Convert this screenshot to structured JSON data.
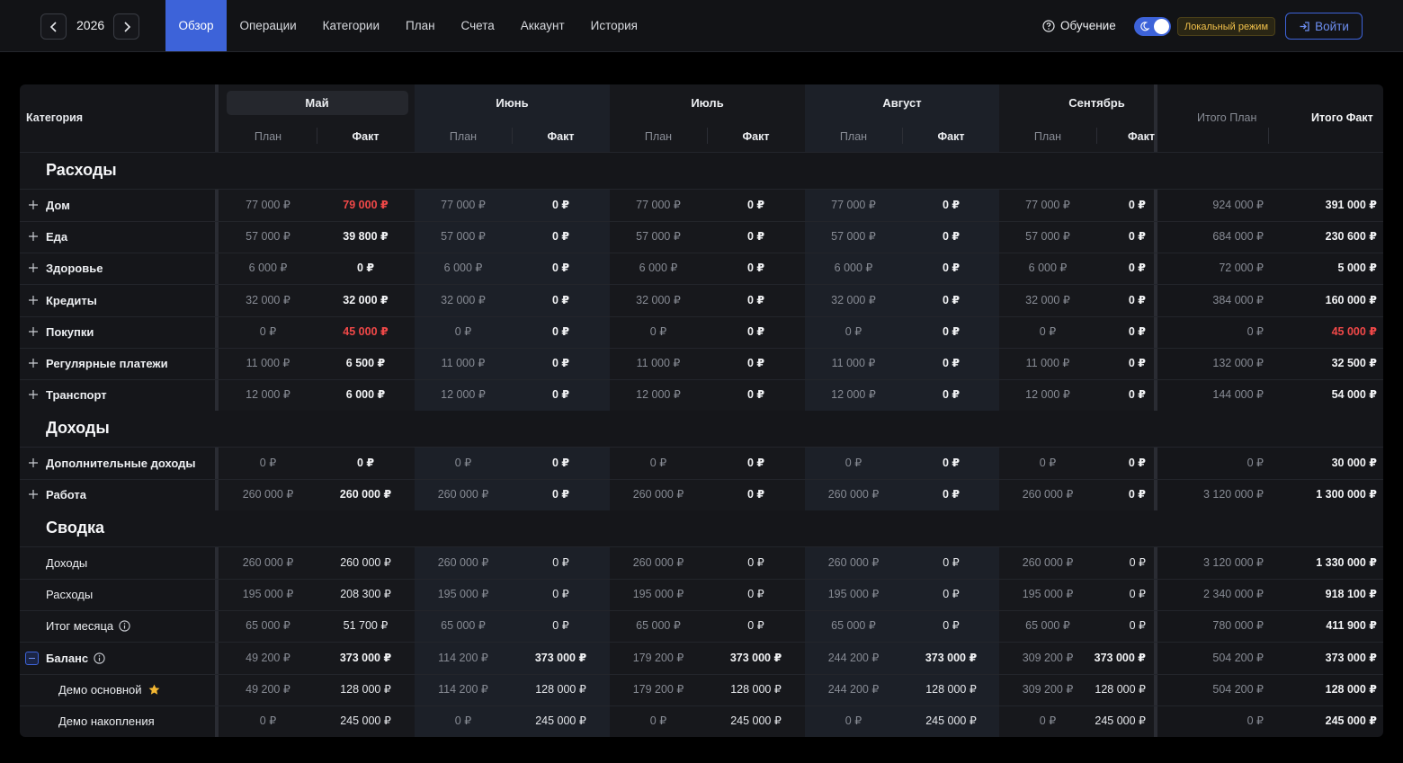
{
  "header": {
    "year": "2026",
    "tabs": [
      "Обзор",
      "Операции",
      "Категории",
      "План",
      "Счета",
      "Аккаунт",
      "История"
    ],
    "active_tab": "Обзор",
    "help_label": "Обучение",
    "local_mode_label": "Локальный режим",
    "login_label": "Войти",
    "accent_color": "#3d63d9",
    "badge_color": "#f2c14b"
  },
  "table": {
    "category_header": "Категория",
    "plan_label": "План",
    "fact_label": "Факт",
    "months": [
      "Май",
      "Июнь",
      "Июль",
      "Август",
      "Сентябрь"
    ],
    "total_plan_header": "Итого План",
    "total_fact_header": "Итого Факт",
    "sections": {
      "expenses": "Расходы",
      "income": "Доходы",
      "summary": "Сводка"
    },
    "expense_rows": [
      {
        "name": "Дом",
        "cells": [
          [
            "77 000 ₽",
            "79 000 ₽"
          ],
          [
            "77 000 ₽",
            "0 ₽"
          ],
          [
            "77 000 ₽",
            "0 ₽"
          ],
          [
            "77 000 ₽",
            "0 ₽"
          ],
          [
            "77 000 ₽",
            "0 ₽"
          ]
        ],
        "total_plan": "924 000 ₽",
        "total_fact": "391 000 ₽"
      },
      {
        "name": "Еда",
        "cells": [
          [
            "57 000 ₽",
            "39 800 ₽"
          ],
          [
            "57 000 ₽",
            "0 ₽"
          ],
          [
            "57 000 ₽",
            "0 ₽"
          ],
          [
            "57 000 ₽",
            "0 ₽"
          ],
          [
            "57 000 ₽",
            "0 ₽"
          ]
        ],
        "total_plan": "684 000 ₽",
        "total_fact": "230 600 ₽"
      },
      {
        "name": "Здоровье",
        "cells": [
          [
            "6 000 ₽",
            "0 ₽"
          ],
          [
            "6 000 ₽",
            "0 ₽"
          ],
          [
            "6 000 ₽",
            "0 ₽"
          ],
          [
            "6 000 ₽",
            "0 ₽"
          ],
          [
            "6 000 ₽",
            "0 ₽"
          ]
        ],
        "total_plan": "72 000 ₽",
        "total_fact": "5 000 ₽"
      },
      {
        "name": "Кредиты",
        "cells": [
          [
            "32 000 ₽",
            "32 000 ₽"
          ],
          [
            "32 000 ₽",
            "0 ₽"
          ],
          [
            "32 000 ₽",
            "0 ₽"
          ],
          [
            "32 000 ₽",
            "0 ₽"
          ],
          [
            "32 000 ₽",
            "0 ₽"
          ]
        ],
        "total_plan": "384 000 ₽",
        "total_fact": "160 000 ₽"
      },
      {
        "name": "Покупки",
        "cells": [
          [
            "0 ₽",
            "45 000 ₽"
          ],
          [
            "0 ₽",
            "0 ₽"
          ],
          [
            "0 ₽",
            "0 ₽"
          ],
          [
            "0 ₽",
            "0 ₽"
          ],
          [
            "0 ₽",
            "0 ₽"
          ]
        ],
        "total_plan": "0 ₽",
        "total_fact": "45 000 ₽"
      },
      {
        "name": "Регулярные платежи",
        "cells": [
          [
            "11 000 ₽",
            "6 500 ₽"
          ],
          [
            "11 000 ₽",
            "0 ₽"
          ],
          [
            "11 000 ₽",
            "0 ₽"
          ],
          [
            "11 000 ₽",
            "0 ₽"
          ],
          [
            "11 000 ₽",
            "0 ₽"
          ]
        ],
        "total_plan": "132 000 ₽",
        "total_fact": "32 500 ₽"
      },
      {
        "name": "Транспорт",
        "cells": [
          [
            "12 000 ₽",
            "6 000 ₽"
          ],
          [
            "12 000 ₽",
            "0 ₽"
          ],
          [
            "12 000 ₽",
            "0 ₽"
          ],
          [
            "12 000 ₽",
            "0 ₽"
          ],
          [
            "12 000 ₽",
            "0 ₽"
          ]
        ],
        "total_plan": "144 000 ₽",
        "total_fact": "54 000 ₽"
      }
    ],
    "income_rows": [
      {
        "name": "Дополнительные доходы",
        "cells": [
          [
            "0 ₽",
            "0 ₽"
          ],
          [
            "0 ₽",
            "0 ₽"
          ],
          [
            "0 ₽",
            "0 ₽"
          ],
          [
            "0 ₽",
            "0 ₽"
          ],
          [
            "0 ₽",
            "0 ₽"
          ]
        ],
        "total_plan": "0 ₽",
        "total_fact": "30 000 ₽"
      },
      {
        "name": "Работа",
        "cells": [
          [
            "260 000 ₽",
            "260 000 ₽"
          ],
          [
            "260 000 ₽",
            "0 ₽"
          ],
          [
            "260 000 ₽",
            "0 ₽"
          ],
          [
            "260 000 ₽",
            "0 ₽"
          ],
          [
            "260 000 ₽",
            "0 ₽"
          ]
        ],
        "total_plan": "3 120 000 ₽",
        "total_fact": "1 300 000 ₽"
      }
    ],
    "summary_rows": [
      {
        "name": "Доходы",
        "cells": [
          [
            "260 000 ₽",
            "260 000 ₽"
          ],
          [
            "260 000 ₽",
            "0 ₽"
          ],
          [
            "260 000 ₽",
            "0 ₽"
          ],
          [
            "260 000 ₽",
            "0 ₽"
          ],
          [
            "260 000 ₽",
            "0 ₽"
          ]
        ],
        "total_plan": "3 120 000 ₽",
        "total_fact": "1 330 000 ₽"
      },
      {
        "name": "Расходы",
        "cells": [
          [
            "195 000 ₽",
            "208 300 ₽"
          ],
          [
            "195 000 ₽",
            "0 ₽"
          ],
          [
            "195 000 ₽",
            "0 ₽"
          ],
          [
            "195 000 ₽",
            "0 ₽"
          ],
          [
            "195 000 ₽",
            "0 ₽"
          ]
        ],
        "total_plan": "2 340 000 ₽",
        "total_fact": "918 100 ₽"
      },
      {
        "name": "Итог месяца",
        "cells": [
          [
            "65 000 ₽",
            "51 700 ₽"
          ],
          [
            "65 000 ₽",
            "0 ₽"
          ],
          [
            "65 000 ₽",
            "0 ₽"
          ],
          [
            "65 000 ₽",
            "0 ₽"
          ],
          [
            "65 000 ₽",
            "0 ₽"
          ]
        ],
        "total_plan": "780 000 ₽",
        "total_fact": "411 900 ₽"
      },
      {
        "name": "Баланс",
        "cells": [
          [
            "49 200 ₽",
            "373 000 ₽"
          ],
          [
            "114 200 ₽",
            "373 000 ₽"
          ],
          [
            "179 200 ₽",
            "373 000 ₽"
          ],
          [
            "244 200 ₽",
            "373 000 ₽"
          ],
          [
            "309 200 ₽",
            "373 000 ₽"
          ]
        ],
        "total_plan": "504 200 ₽",
        "total_fact": "373 000 ₽"
      },
      {
        "name": "Демо основной",
        "cells": [
          [
            "49 200 ₽",
            "128 000 ₽"
          ],
          [
            "114 200 ₽",
            "128 000 ₽"
          ],
          [
            "179 200 ₽",
            "128 000 ₽"
          ],
          [
            "244 200 ₽",
            "128 000 ₽"
          ],
          [
            "309 200 ₽",
            "128 000 ₽"
          ]
        ],
        "total_plan": "504 200 ₽",
        "total_fact": "128 000 ₽"
      },
      {
        "name": "Демо накопления",
        "cells": [
          [
            "0 ₽",
            "245 000 ₽"
          ],
          [
            "0 ₽",
            "245 000 ₽"
          ],
          [
            "0 ₽",
            "245 000 ₽"
          ],
          [
            "0 ₽",
            "245 000 ₽"
          ],
          [
            "0 ₽",
            "245 000 ₽"
          ]
        ],
        "total_plan": "0 ₽",
        "total_fact": "245 000 ₽"
      }
    ],
    "overspent_color": "#f04848",
    "overspent_cells": [
      "expense_rows.0.cells.0.1",
      "expense_rows.4.cells.0.1",
      "expense_rows.4.total_fact"
    ]
  }
}
